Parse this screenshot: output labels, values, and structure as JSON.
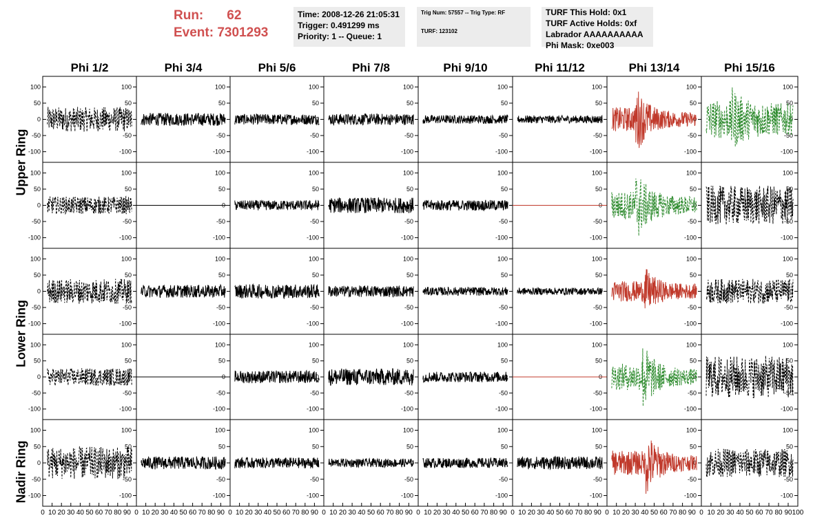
{
  "header": {
    "run_label": "Run:",
    "run_value": "62",
    "event_label": "Event:",
    "event_value": "7301293",
    "time_line": "Time: 2008-12-26 21:05:31",
    "trigger_line": "Trigger: 0.491299 ms",
    "priority_line": "Priority: 1 -- Queue: 1",
    "trig_num_line": "Trig Num: 57557 -- Trig Type: RF",
    "turf_line": "TURF: 123102",
    "turf_this_hold": "TURF This Hold: 0x1",
    "turf_active_holds": "TURF Active Holds: 0xf",
    "labrador": "Labrador AAAAAAAAAA",
    "phi_mask": "Phi Mask: 0xe003"
  },
  "columns": [
    "Phi 1/2",
    "Phi 3/4",
    "Phi 5/6",
    "Phi 7/8",
    "Phi 9/10",
    "Phi 11/12",
    "Phi 13/14",
    "Phi 15/16"
  ],
  "rings": [
    "Upper Ring",
    "Lower Ring",
    "Nadir Ring"
  ],
  "colors": {
    "red": "#c0392b",
    "green": "#2e8b2e",
    "black": "#000000",
    "header_red": "#d05050"
  },
  "chart_data": {
    "type": "line",
    "description_rows": [
      "Upper Ring (row 1)",
      "Upper Ring (row 2)",
      "Lower Ring (row 1)",
      "Lower Ring (row 2)",
      "Nadir Ring"
    ],
    "xlim": [
      0,
      100
    ],
    "ylim": [
      -120,
      120
    ],
    "x_ticks": [
      "0",
      "10",
      "20",
      "30",
      "40",
      "50",
      "60",
      "70",
      "80",
      "90",
      "100"
    ],
    "y_ticks": [
      "100",
      "50",
      "0",
      "-50",
      "-100"
    ],
    "grid": false,
    "panels": [
      [
        {
          "color": "black",
          "style": "dashed",
          "amp": 35,
          "flat": false,
          "burst": false
        },
        {
          "color": "black",
          "style": "solid",
          "amp": 18,
          "flat": false,
          "burst": false
        },
        {
          "color": "black",
          "style": "solid",
          "amp": 15,
          "flat": false,
          "burst": false
        },
        {
          "color": "black",
          "style": "solid",
          "amp": 16,
          "flat": false,
          "burst": false
        },
        {
          "color": "black",
          "style": "solid",
          "amp": 12,
          "flat": false,
          "burst": false
        },
        {
          "color": "black",
          "style": "solid",
          "amp": 11,
          "flat": false,
          "burst": false
        },
        {
          "color": "red",
          "style": "solid",
          "amp": 20,
          "flat": false,
          "burst": true,
          "peak": 90
        },
        {
          "color": "green",
          "style": "dashed",
          "amp": 45,
          "flat": false,
          "burst": true,
          "peak": 90
        }
      ],
      [
        {
          "color": "black",
          "style": "dashed",
          "amp": 25,
          "flat": false,
          "burst": false
        },
        {
          "color": "black",
          "style": "solid",
          "amp": 0,
          "flat": true,
          "burst": false
        },
        {
          "color": "black",
          "style": "solid",
          "amp": 14,
          "flat": false,
          "burst": false
        },
        {
          "color": "black",
          "style": "solid",
          "amp": 22,
          "flat": false,
          "burst": false
        },
        {
          "color": "black",
          "style": "solid",
          "amp": 15,
          "flat": false,
          "burst": false
        },
        {
          "color": "red",
          "style": "solid",
          "amp": 0,
          "flat": true,
          "burst": false
        },
        {
          "color": "green",
          "style": "dashed",
          "amp": 25,
          "flat": false,
          "burst": true,
          "peak": 100
        },
        {
          "color": "black",
          "style": "dashed",
          "amp": 55,
          "flat": false,
          "burst": false
        }
      ],
      [
        {
          "color": "black",
          "style": "dashed",
          "amp": 35,
          "flat": false,
          "burst": false
        },
        {
          "color": "black",
          "style": "solid",
          "amp": 18,
          "flat": false,
          "burst": false
        },
        {
          "color": "black",
          "style": "solid",
          "amp": 20,
          "flat": false,
          "burst": false
        },
        {
          "color": "black",
          "style": "solid",
          "amp": 16,
          "flat": false,
          "burst": false
        },
        {
          "color": "black",
          "style": "solid",
          "amp": 12,
          "flat": false,
          "burst": false
        },
        {
          "color": "black",
          "style": "solid",
          "amp": 10,
          "flat": false,
          "burst": false
        },
        {
          "color": "red",
          "style": "solid",
          "amp": 20,
          "flat": false,
          "burst": true,
          "peak": 65
        },
        {
          "color": "black",
          "style": "dashed",
          "amp": 35,
          "flat": false,
          "burst": false
        }
      ],
      [
        {
          "color": "black",
          "style": "dashed",
          "amp": 25,
          "flat": false,
          "burst": false
        },
        {
          "color": "black",
          "style": "solid",
          "amp": 0,
          "flat": true,
          "burst": false
        },
        {
          "color": "black",
          "style": "solid",
          "amp": 18,
          "flat": false,
          "burst": false
        },
        {
          "color": "black",
          "style": "solid",
          "amp": 24,
          "flat": false,
          "burst": false
        },
        {
          "color": "black",
          "style": "solid",
          "amp": 15,
          "flat": false,
          "burst": false
        },
        {
          "color": "red",
          "style": "solid",
          "amp": 0,
          "flat": true,
          "burst": false
        },
        {
          "color": "green",
          "style": "dashed",
          "amp": 22,
          "flat": false,
          "burst": true,
          "peak": 100
        },
        {
          "color": "black",
          "style": "dashed",
          "amp": 60,
          "flat": false,
          "burst": false
        }
      ],
      [
        {
          "color": "black",
          "style": "dashed",
          "amp": 45,
          "flat": false,
          "burst": false
        },
        {
          "color": "black",
          "style": "solid",
          "amp": 18,
          "flat": false,
          "burst": false
        },
        {
          "color": "black",
          "style": "solid",
          "amp": 15,
          "flat": false,
          "burst": false
        },
        {
          "color": "black",
          "style": "solid",
          "amp": 12,
          "flat": false,
          "burst": false
        },
        {
          "color": "black",
          "style": "solid",
          "amp": 14,
          "flat": false,
          "burst": false
        },
        {
          "color": "black",
          "style": "solid",
          "amp": 18,
          "flat": false,
          "burst": false
        },
        {
          "color": "red",
          "style": "solid",
          "amp": 20,
          "flat": false,
          "burst": true,
          "peak": 90
        },
        {
          "color": "black",
          "style": "dashed",
          "amp": 40,
          "flat": false,
          "burst": false
        }
      ]
    ]
  }
}
